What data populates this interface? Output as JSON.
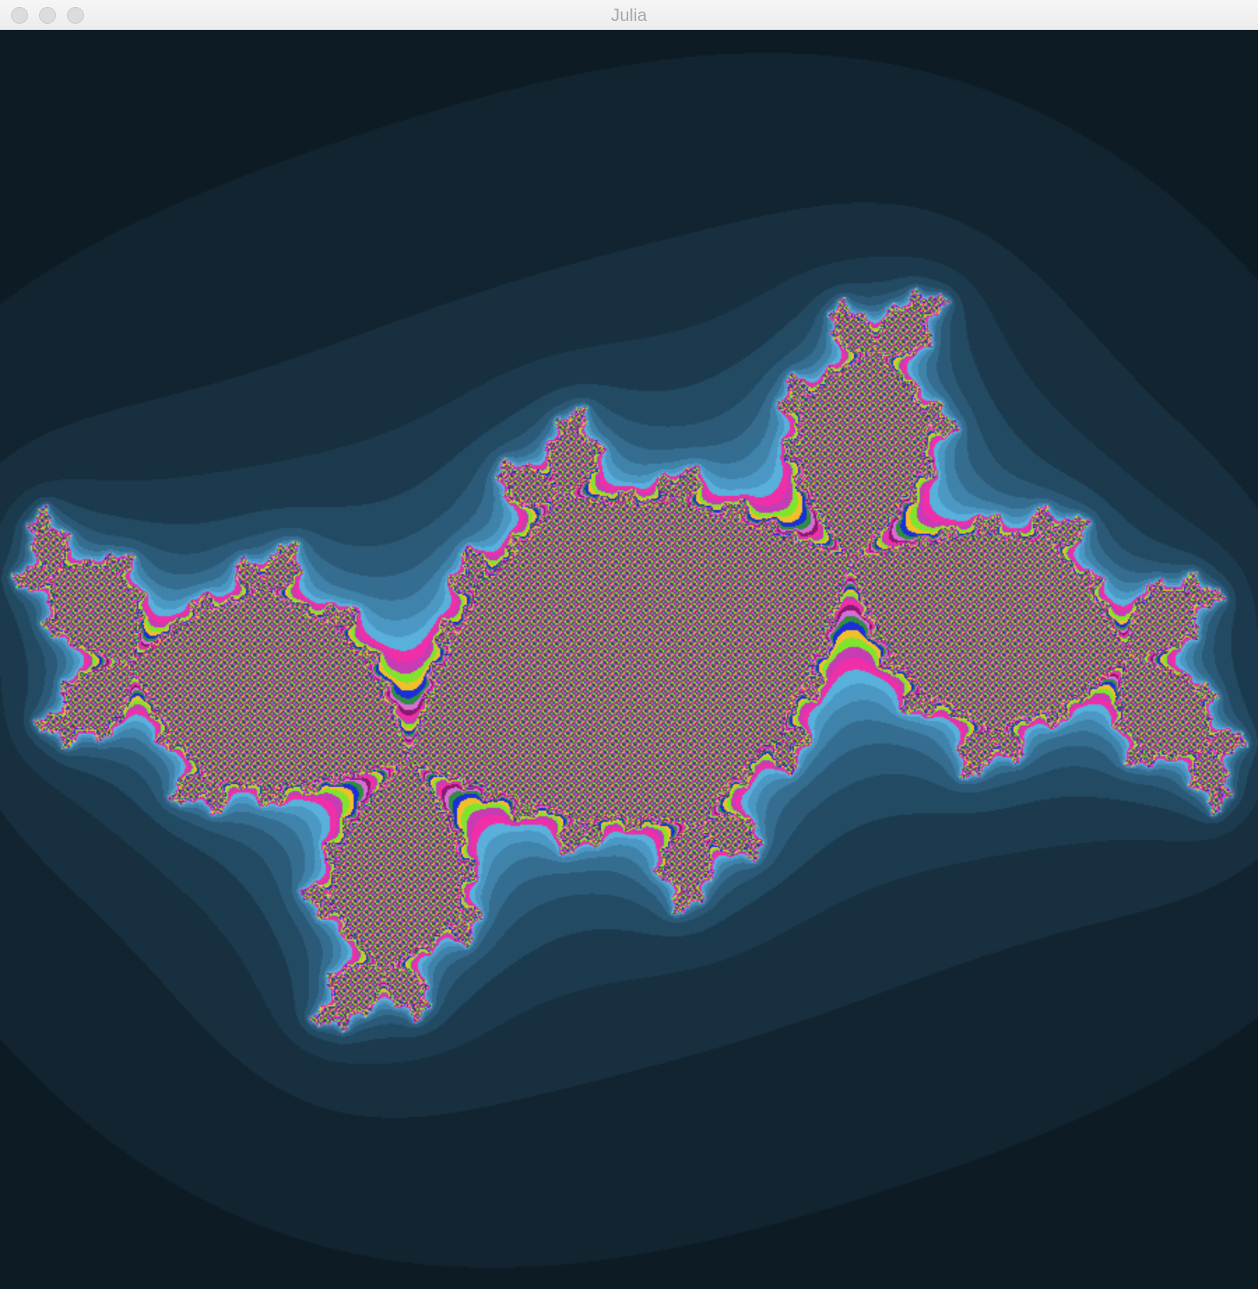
{
  "window": {
    "title": "Julia"
  },
  "controls": [
    {
      "name": "close",
      "icon": "close-button-icon"
    },
    {
      "name": "minimize",
      "icon": "minimize-button-icon"
    },
    {
      "name": "zoom",
      "icon": "zoom-button-icon"
    }
  ],
  "fractal": {
    "palette": {
      "background": "#000000",
      "blue_levels": [
        "#050b0f",
        "#08121a",
        "#0d1b25",
        "#122430",
        "#172f3e",
        "#1c3a4d",
        "#234a63",
        "#2b5a78",
        "#356d90",
        "#3f82aa",
        "#4b98c4",
        "#58b0db"
      ],
      "interior": [
        "#ef2fa8",
        "#c63cb5",
        "#7fe52c",
        "#f0bf2a",
        "#1a2fd6",
        "#2f8c43",
        "#d56fd6",
        "#8b1a6f"
      ]
    }
  }
}
